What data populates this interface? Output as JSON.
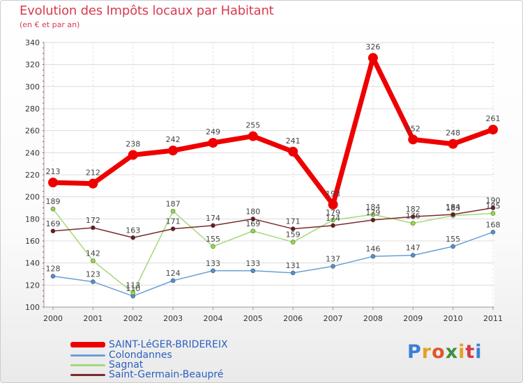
{
  "header": {
    "title": "Evolution des Impôts locaux par Habitant",
    "subtitle": "(en € et par an)"
  },
  "logo": {
    "text": "Proxiti",
    "colors": [
      "#3a7fd6",
      "#e8a020",
      "#e2552a",
      "#3f8f3f",
      "#e8a020",
      "#d63a4a",
      "#3a7fd6"
    ]
  },
  "chart_data": {
    "type": "line",
    "title": "Evolution des Impôts locaux par Habitant",
    "subtitle": "(en € et par an)",
    "xlabel": "",
    "ylabel": "",
    "categories": [
      "2000",
      "2001",
      "2002",
      "2003",
      "2004",
      "2005",
      "2006",
      "2007",
      "2008",
      "2009",
      "2010",
      "2011"
    ],
    "ylim": [
      100,
      340
    ],
    "yticks": [
      "100",
      "120",
      "140",
      "160",
      "180",
      "200",
      "220",
      "240",
      "260",
      "280",
      "300",
      "320",
      "340"
    ],
    "grid": true,
    "legend_position": "bottom-left",
    "series": [
      {
        "name": "SAINT-LéGER-BRIDEREIX",
        "color": "#ee0000",
        "marker_color": "#ee0000",
        "thick": true,
        "values": [
          213,
          212,
          238,
          242,
          249,
          255,
          241,
          193,
          326,
          252,
          248,
          261
        ],
        "labels": [
          "213",
          "212",
          "238",
          "242",
          "249",
          "255",
          "241",
          "193",
          "326",
          "252",
          "248",
          "261"
        ]
      },
      {
        "name": "Colondannes",
        "color": "#6a9fd4",
        "marker_color": "#4f8fd8",
        "thick": false,
        "values": [
          128,
          123,
          110,
          124,
          133,
          133,
          131,
          137,
          146,
          147,
          155,
          168
        ],
        "labels": [
          "128",
          "123",
          "110",
          "124",
          "133",
          "133",
          "131",
          "137",
          "146",
          "147",
          "155",
          "168"
        ]
      },
      {
        "name": "Sagnat",
        "color": "#a6d87a",
        "marker_color": "#8fe03a",
        "thick": false,
        "values": [
          189,
          142,
          113,
          187,
          155,
          169,
          159,
          179,
          184,
          176,
          183,
          185
        ],
        "labels": [
          "189",
          "142",
          "113",
          "187",
          "155",
          "169",
          "159",
          "179",
          "184",
          "176",
          "183",
          "185"
        ]
      },
      {
        "name": "Saint-Germain-Beaupré",
        "color": "#7a2a2a",
        "marker_color": "#6a1a1a",
        "thick": false,
        "values": [
          169,
          172,
          163,
          171,
          174,
          180,
          171,
          174,
          179,
          182,
          184,
          190
        ],
        "labels": [
          "169",
          "172",
          "163",
          "171",
          "174",
          "180",
          "171",
          "174",
          "179",
          "182",
          "184",
          "190"
        ]
      }
    ]
  }
}
